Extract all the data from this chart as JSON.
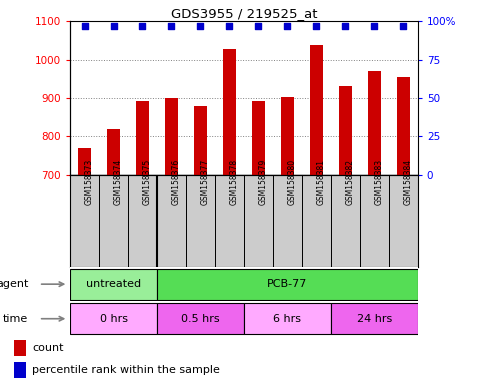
{
  "title": "GDS3955 / 219525_at",
  "samples": [
    "GSM158373",
    "GSM158374",
    "GSM158375",
    "GSM158376",
    "GSM158377",
    "GSM158378",
    "GSM158379",
    "GSM158380",
    "GSM158381",
    "GSM158382",
    "GSM158383",
    "GSM158384"
  ],
  "counts": [
    770,
    820,
    893,
    900,
    878,
    1028,
    893,
    903,
    1038,
    930,
    970,
    955
  ],
  "percentile_ranks": [
    97,
    97,
    97,
    97,
    97,
    97,
    97,
    97,
    97,
    97,
    97,
    97
  ],
  "bar_color": "#cc0000",
  "dot_color": "#0000cc",
  "ylim_left": [
    700,
    1100
  ],
  "ylim_right": [
    0,
    100
  ],
  "yticks_left": [
    700,
    800,
    900,
    1000,
    1100
  ],
  "yticks_right": [
    0,
    25,
    50,
    75,
    100
  ],
  "grid_values": [
    800,
    900,
    1000
  ],
  "agent_groups": [
    {
      "label": "untreated",
      "start": 0,
      "end": 3,
      "color": "#99ee99"
    },
    {
      "label": "PCB-77",
      "start": 3,
      "end": 12,
      "color": "#55dd55"
    }
  ],
  "time_groups": [
    {
      "label": "0 hrs",
      "start": 0,
      "end": 3,
      "color": "#ffaaff"
    },
    {
      "label": "0.5 hrs",
      "start": 3,
      "end": 6,
      "color": "#ee66ee"
    },
    {
      "label": "6 hrs",
      "start": 6,
      "end": 9,
      "color": "#ffaaff"
    },
    {
      "label": "24 hrs",
      "start": 9,
      "end": 12,
      "color": "#ee66ee"
    }
  ],
  "sample_bg": "#cccccc",
  "fig_bg": "#ffffff"
}
